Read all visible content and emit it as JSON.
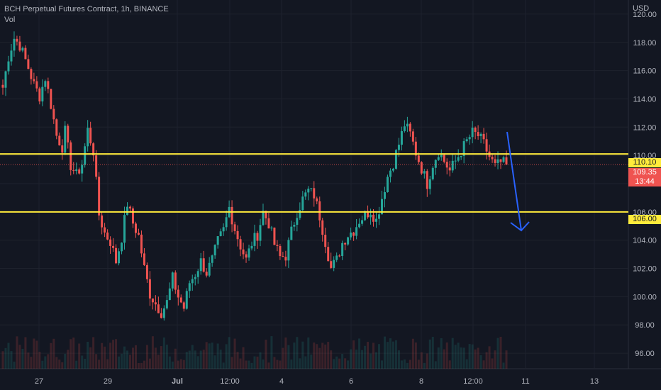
{
  "header": {
    "symbol": "BCH Perpetual Futures Contract, 1h, BINANCE",
    "indicator": "Vol"
  },
  "axis": {
    "currency": "USD"
  },
  "price_tags": {
    "resistance": "110.10",
    "last_price": "109.35",
    "countdown": "13:44",
    "support": "106.00"
  },
  "colors": {
    "background": "#131722",
    "up": "#26a69a",
    "down": "#ef5350",
    "level_line": "#ffeb3b",
    "arrow": "#2962ff"
  },
  "chart_data": {
    "type": "candlestick",
    "y_range": [
      94.9,
      121.0
    ],
    "y_ticks": [
      "120.00",
      "118.00",
      "116.00",
      "114.00",
      "112.00",
      "110.00",
      "108.00",
      "106.00",
      "104.00",
      "102.00",
      "100.00",
      "98.00",
      "96.00"
    ],
    "x_ticks": [
      "27",
      "29",
      "Jul",
      "12:00",
      "4",
      "6",
      "8",
      "12:00",
      "11",
      "13"
    ],
    "horizontal_levels": [
      110.1,
      106.0
    ],
    "last_price": 109.35,
    "close_path": [
      [
        0,
        114.8
      ],
      [
        2,
        117.0
      ],
      [
        4,
        118.3
      ],
      [
        6,
        117.8
      ],
      [
        9,
        116.2
      ],
      [
        11,
        115.0
      ],
      [
        13,
        114.2
      ],
      [
        15,
        115.5
      ],
      [
        17,
        113.6
      ],
      [
        19,
        111.4
      ],
      [
        21,
        110.6
      ],
      [
        22,
        111.7
      ],
      [
        24,
        109.3
      ],
      [
        26,
        108.6
      ],
      [
        28,
        109.4
      ],
      [
        30,
        111.8
      ],
      [
        32,
        110.3
      ],
      [
        34,
        105.8
      ],
      [
        36,
        104.5
      ],
      [
        38,
        103.9
      ],
      [
        40,
        102.5
      ],
      [
        42,
        104.2
      ],
      [
        44,
        106.6
      ],
      [
        46,
        105.2
      ],
      [
        48,
        104.3
      ],
      [
        50,
        102.0
      ],
      [
        52,
        100.2
      ],
      [
        54,
        99.5
      ],
      [
        56,
        98.9
      ],
      [
        58,
        99.6
      ],
      [
        60,
        101.3
      ],
      [
        62,
        100.0
      ],
      [
        64,
        99.2
      ],
      [
        66,
        101.0
      ],
      [
        68,
        101.6
      ],
      [
        70,
        102.5
      ],
      [
        72,
        101.7
      ],
      [
        74,
        102.6
      ],
      [
        76,
        103.9
      ],
      [
        78,
        104.7
      ],
      [
        80,
        106.3
      ],
      [
        82,
        104.8
      ],
      [
        84,
        103.6
      ],
      [
        86,
        102.6
      ],
      [
        88,
        103.8
      ],
      [
        90,
        104.4
      ],
      [
        92,
        106.0
      ],
      [
        94,
        105.2
      ],
      [
        96,
        103.7
      ],
      [
        98,
        102.8
      ],
      [
        100,
        102.9
      ],
      [
        102,
        104.6
      ],
      [
        104,
        106.0
      ],
      [
        106,
        106.9
      ],
      [
        108,
        107.5
      ],
      [
        110,
        107.2
      ],
      [
        112,
        105.7
      ],
      [
        114,
        103.9
      ],
      [
        116,
        102.0
      ],
      [
        118,
        102.6
      ],
      [
        120,
        103.8
      ],
      [
        122,
        104.4
      ],
      [
        124,
        104.7
      ],
      [
        126,
        105.4
      ],
      [
        128,
        105.8
      ],
      [
        130,
        106.1
      ],
      [
        132,
        105.4
      ],
      [
        134,
        107.0
      ],
      [
        136,
        108.5
      ],
      [
        138,
        109.5
      ],
      [
        140,
        110.8
      ],
      [
        142,
        112.2
      ],
      [
        144,
        111.5
      ],
      [
        146,
        110.2
      ],
      [
        148,
        109.1
      ],
      [
        150,
        108.0
      ],
      [
        152,
        109.4
      ],
      [
        154,
        110.3
      ],
      [
        156,
        109.6
      ],
      [
        158,
        108.9
      ],
      [
        160,
        109.6
      ],
      [
        162,
        110.3
      ],
      [
        164,
        111.0
      ],
      [
        166,
        111.6
      ],
      [
        168,
        111.4
      ],
      [
        170,
        110.8
      ],
      [
        172,
        109.9
      ],
      [
        174,
        109.2
      ],
      [
        176,
        109.5
      ],
      [
        178,
        109.35
      ]
    ]
  }
}
